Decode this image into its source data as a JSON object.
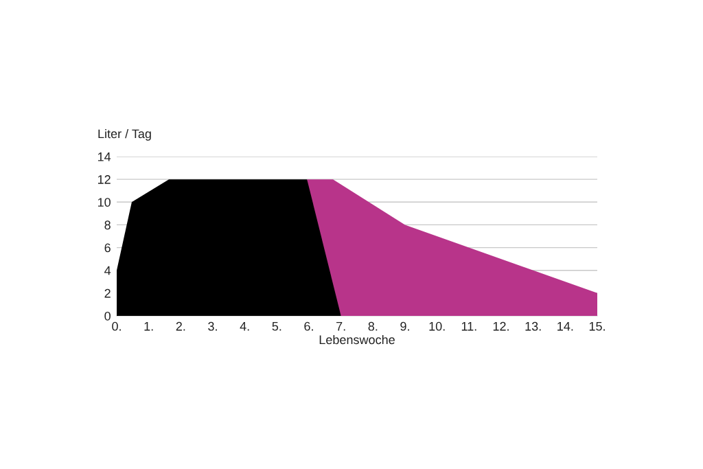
{
  "chart_data": {
    "type": "area",
    "xlabel": "Lebenswoche",
    "ylabel": "Liter / Tag",
    "series": [
      {
        "color": "#b8348a",
        "x": [
          5.94,
          6.75,
          9.0,
          15.0
        ],
        "values": [
          12,
          12,
          8,
          2
        ]
      },
      {
        "color": "#000000",
        "x": [
          0,
          0.47,
          1.63,
          5.94,
          7.0
        ],
        "values": [
          4,
          10,
          12,
          12,
          0
        ]
      }
    ],
    "xlim": [
      0,
      15
    ],
    "ylim": [
      0,
      14
    ],
    "xticks": [
      {
        "value": 0,
        "label": "0."
      },
      {
        "value": 1,
        "label": "1."
      },
      {
        "value": 2,
        "label": "2."
      },
      {
        "value": 3,
        "label": "3."
      },
      {
        "value": 4,
        "label": "4."
      },
      {
        "value": 5,
        "label": "5."
      },
      {
        "value": 6,
        "label": "6."
      },
      {
        "value": 7,
        "label": "7."
      },
      {
        "value": 8,
        "label": "8."
      },
      {
        "value": 9,
        "label": "9."
      },
      {
        "value": 10,
        "label": "10."
      },
      {
        "value": 11,
        "label": "11."
      },
      {
        "value": 12,
        "label": "12."
      },
      {
        "value": 13,
        "label": "13."
      },
      {
        "value": 14,
        "label": "14."
      },
      {
        "value": 15,
        "label": "15."
      }
    ],
    "yticks": [
      0,
      2,
      4,
      6,
      8,
      10,
      12,
      14
    ],
    "grid": "y"
  }
}
